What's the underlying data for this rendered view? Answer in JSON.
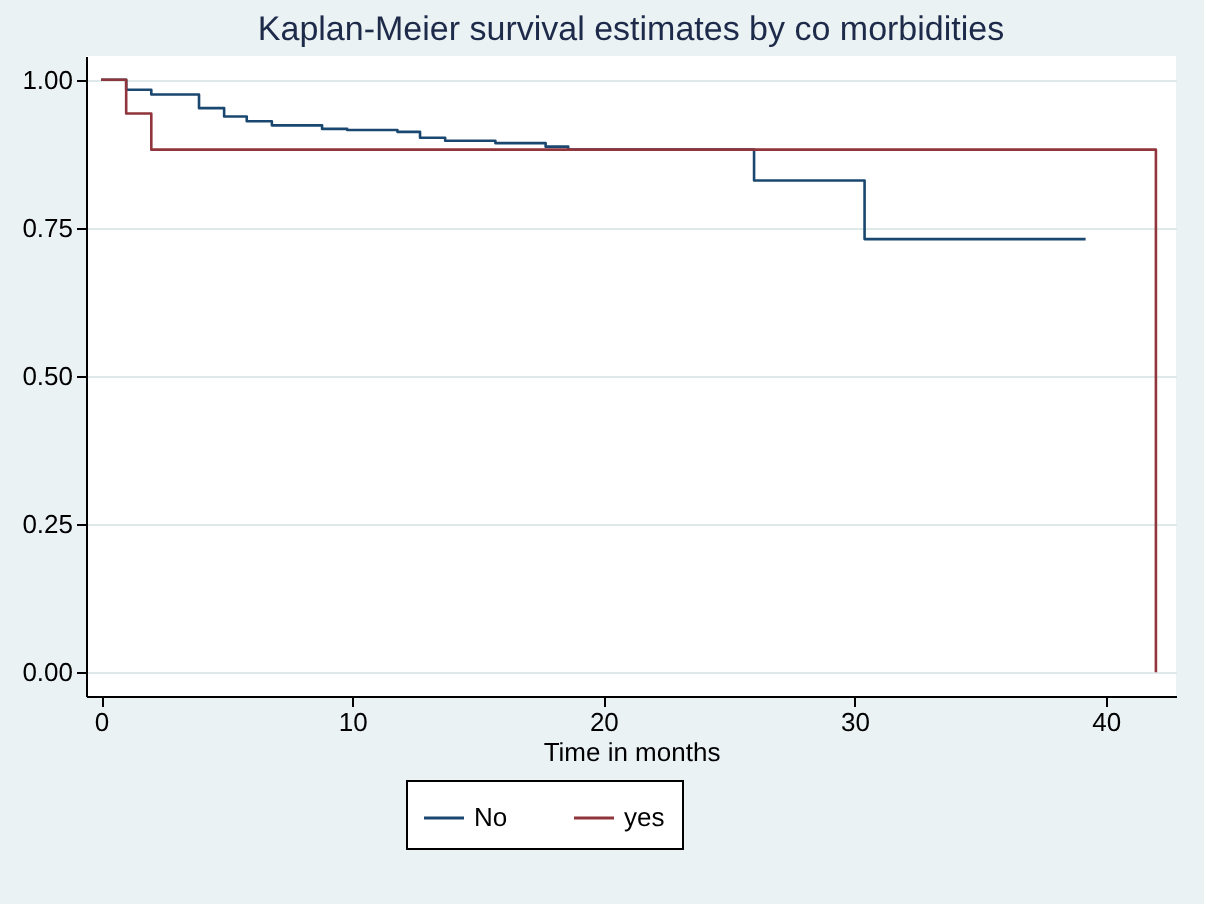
{
  "chart_data": {
    "type": "step",
    "title": "Kaplan-Meier survival estimates by co morbidities",
    "xlabel": "Time in months",
    "series": [
      {
        "name": "No",
        "color": "#1a476f",
        "x": [
          0,
          1,
          2,
          3.9,
          4.9,
          5.8,
          6.8,
          8.8,
          9.8,
          11.8,
          12.7,
          13.7,
          15.7,
          17.7,
          18.6,
          26,
          30.4,
          39.2
        ],
        "values": [
          1.0,
          0.983,
          0.975,
          0.952,
          0.938,
          0.93,
          0.923,
          0.917,
          0.915,
          0.912,
          0.902,
          0.897,
          0.893,
          0.887,
          0.882,
          0.83,
          0.731,
          0.731
        ]
      },
      {
        "name": "yes",
        "color": "#90353b",
        "x": [
          0,
          1,
          2,
          42,
          42
        ],
        "values": [
          1.0,
          0.943,
          0.882,
          0.882,
          0.0
        ]
      }
    ],
    "xlim": [
      -0.6,
      42.8
    ],
    "xticks": [
      0,
      10,
      20,
      30,
      40
    ],
    "ylim": [
      -0.04,
      1.04
    ],
    "yticks": [
      {
        "value": 0,
        "label": "0.00"
      },
      {
        "value": 0.25,
        "label": "0.25"
      },
      {
        "value": 0.5,
        "label": "0.50"
      },
      {
        "value": 0.75,
        "label": "0.75"
      },
      {
        "value": 1,
        "label": "1.00"
      }
    ],
    "grid": "y",
    "legend": "bottom",
    "line_style": "solid"
  }
}
